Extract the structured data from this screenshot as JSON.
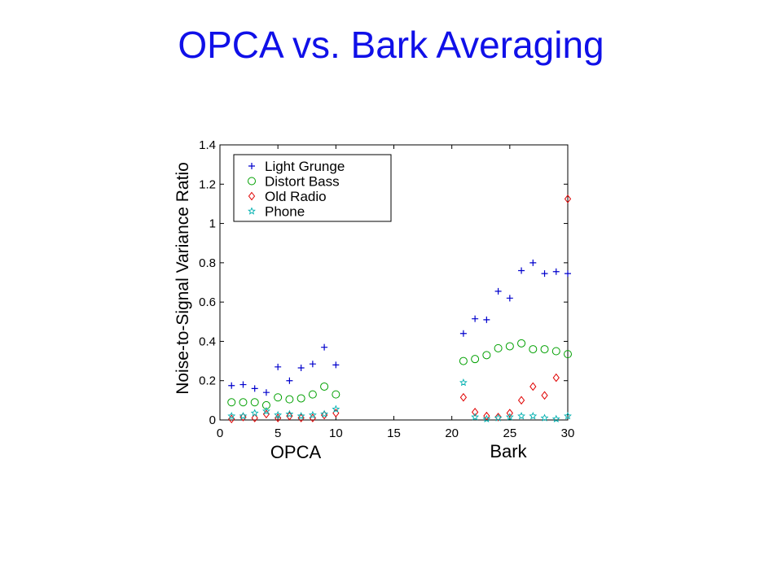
{
  "slide": {
    "title": "OPCA vs. Bark Averaging"
  },
  "chart_data": {
    "type": "scatter",
    "title": "",
    "ylabel": "Noise-to-Signal Variance Ratio",
    "xlabel_groups": [
      "OPCA",
      "Bark"
    ],
    "xlim": [
      0,
      30
    ],
    "ylim": [
      0,
      1.4
    ],
    "x_ticks": [
      0,
      5,
      10,
      15,
      20,
      25,
      30
    ],
    "y_ticks": [
      0,
      0.2,
      0.4,
      0.6,
      0.8,
      1,
      1.2,
      1.4
    ],
    "x_tick_labels": [
      "0",
      "5",
      "10",
      "15",
      "20",
      "25",
      "30"
    ],
    "y_tick_labels": [
      "0",
      "0.2",
      "0.4",
      "0.6",
      "0.8",
      "1",
      "1.2",
      "1.4"
    ],
    "legend_position": "top-left",
    "x": [
      1,
      2,
      3,
      4,
      5,
      6,
      7,
      8,
      9,
      10,
      21,
      22,
      23,
      24,
      25,
      26,
      27,
      28,
      29,
      30
    ],
    "series": [
      {
        "name": "Light Grunge",
        "marker": "+",
        "color": "#0000cc",
        "values": [
          0.175,
          0.18,
          0.16,
          0.14,
          0.27,
          0.2,
          0.265,
          0.285,
          0.37,
          0.28,
          0.44,
          0.515,
          0.51,
          0.655,
          0.62,
          0.76,
          0.8,
          0.745,
          0.755,
          0.745
        ]
      },
      {
        "name": "Distort Bass",
        "marker": "o",
        "color": "#00a000",
        "values": [
          0.09,
          0.09,
          0.09,
          0.075,
          0.115,
          0.105,
          0.11,
          0.13,
          0.17,
          0.13,
          0.3,
          0.31,
          0.33,
          0.365,
          0.375,
          0.39,
          0.36,
          0.36,
          0.35,
          0.335
        ]
      },
      {
        "name": "Old Radio",
        "marker": "diamond",
        "color": "#e00000",
        "values": [
          0.005,
          0.015,
          0.01,
          0.03,
          0.01,
          0.02,
          0.01,
          0.01,
          0.025,
          0.035,
          0.115,
          0.04,
          0.02,
          0.015,
          0.035,
          0.1,
          0.17,
          0.125,
          0.215,
          1.125
        ]
      },
      {
        "name": "Phone",
        "marker": "star",
        "color": "#00b0b0",
        "values": [
          0.02,
          0.02,
          0.035,
          0.045,
          0.025,
          0.03,
          0.02,
          0.025,
          0.03,
          0.055,
          0.19,
          0.015,
          0.005,
          0.01,
          0.015,
          0.02,
          0.02,
          0.01,
          0.005,
          0.02
        ]
      }
    ]
  }
}
